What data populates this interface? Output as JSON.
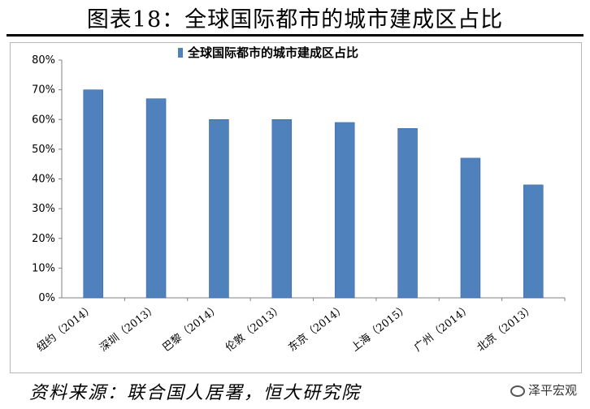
{
  "figure_title": "图表18：全球国际都市的城市建成区占比",
  "source": "资料来源：联合国人居署，恒大研究院",
  "watermark": "泽平宏观",
  "colors": {
    "bar": "#4f81bd",
    "bar_dark": "#2f5f9e",
    "axis": "#808080"
  },
  "chart_data": {
    "type": "bar",
    "legend": "全球国际都市的城市建成区占比",
    "legend_position": "top-center",
    "categories": [
      "纽约（2014）",
      "深圳（2013）",
      "巴黎（2014）",
      "伦敦（2013）",
      "东京（2014）",
      "上海（2015）",
      "广州（2014）",
      "北京（2013）"
    ],
    "values": [
      70,
      67,
      60,
      60,
      59,
      57,
      47,
      38
    ],
    "unit": "%",
    "ylim": [
      0,
      80
    ],
    "yticks": [
      "0%",
      "10%",
      "20%",
      "30%",
      "40%",
      "50%",
      "60%",
      "70%",
      "80%"
    ],
    "grid": false
  }
}
